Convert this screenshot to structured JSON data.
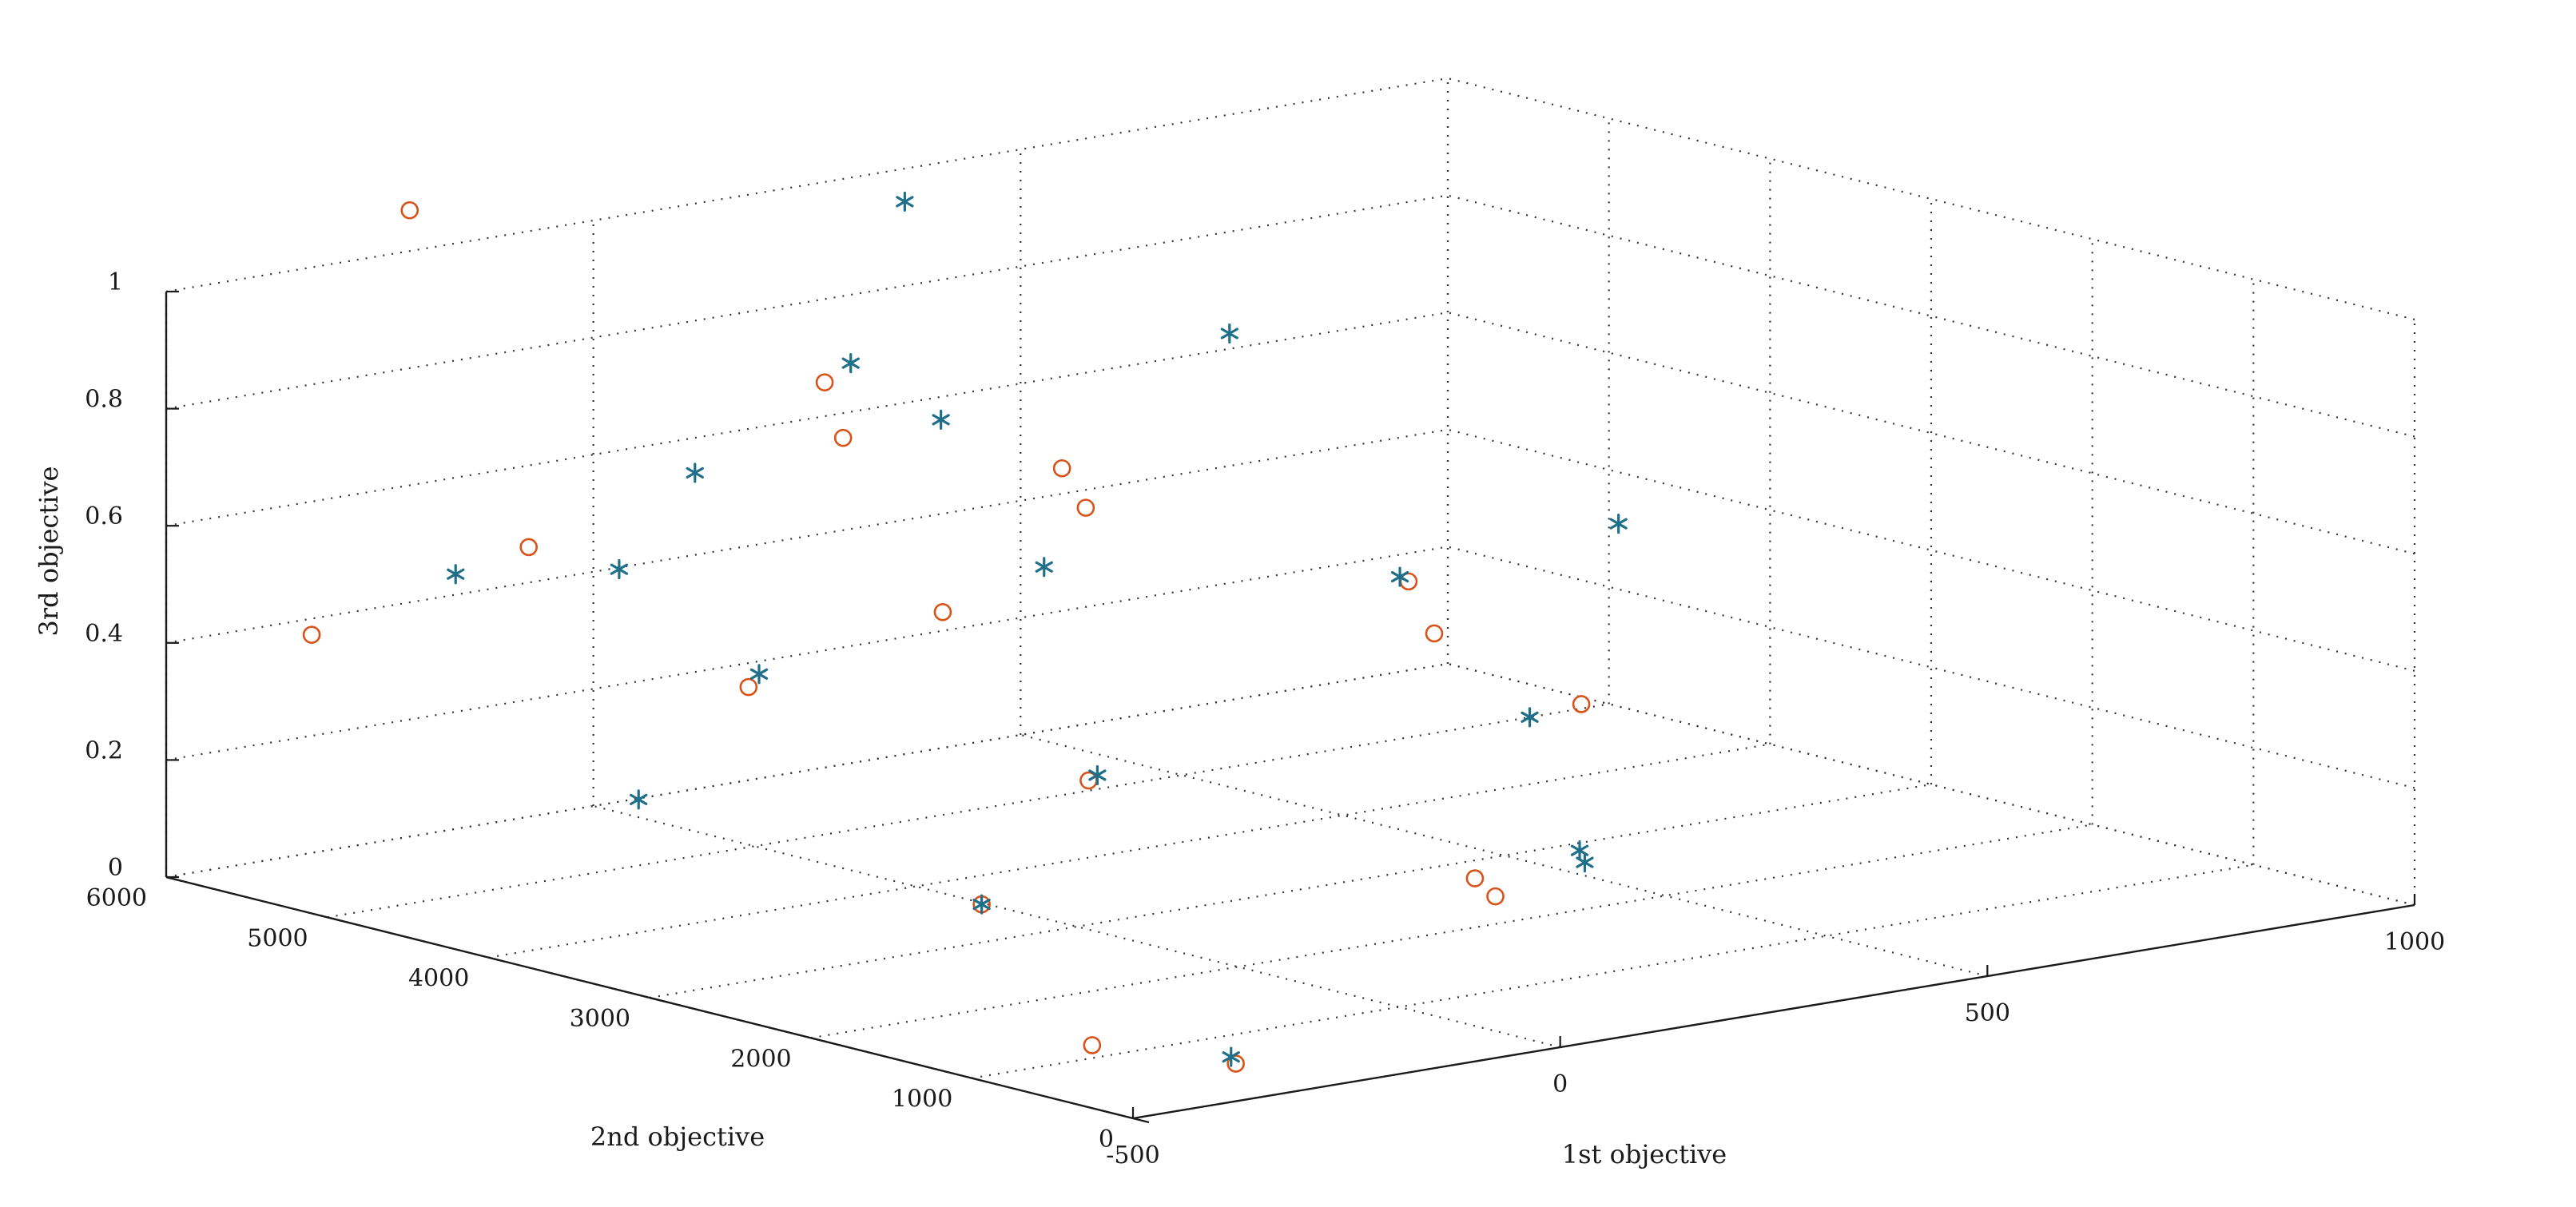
{
  "chart_data": {
    "type": "scatter",
    "title": "",
    "xlabel": "1st objective",
    "ylabel": "2nd objective",
    "zlabel": "3rd objective",
    "x_ticks": [
      "-500",
      "0",
      "500",
      "1000"
    ],
    "y_ticks": [
      "0",
      "1000",
      "2000",
      "3000",
      "4000",
      "5000",
      "6000"
    ],
    "z_ticks": [
      "0",
      "0.2",
      "0.4",
      "0.6",
      "0.8",
      "1"
    ],
    "xlim": [
      -500,
      1000
    ],
    "ylim": [
      0,
      6000
    ],
    "zlim": [
      0,
      1
    ],
    "grid": true,
    "series": [
      {
        "marker": "circle",
        "color": "#d95319",
        "points": [
          {
            "x": -331,
            "y": 5385,
            "z": 1.14
          },
          {
            "x": -79,
            "y": 4146,
            "z": 0.87
          },
          {
            "x": -74,
            "y": 4058,
            "z": 0.78
          },
          {
            "x": -289,
            "y": 4869,
            "z": 0.59
          },
          {
            "x": -408,
            "y": 5585,
            "z": 0.42
          },
          {
            "x": 93,
            "y": 3585,
            "z": 0.72
          },
          {
            "x": 114,
            "y": 3549,
            "z": 0.65
          },
          {
            "x": 0,
            "y": 3832,
            "z": 0.48
          },
          {
            "x": -133,
            "y": 4332,
            "z": 0.35
          },
          {
            "x": 364,
            "y": 2871,
            "z": 0.51
          },
          {
            "x": 384,
            "y": 2818,
            "z": 0.42
          },
          {
            "x": 486,
            "y": 2446,
            "z": 0.3
          },
          {
            "x": 90,
            "y": 3404,
            "z": 0.2
          },
          {
            "x": -4,
            "y": 3569,
            "z": 0.0
          },
          {
            "x": 366,
            "y": 2470,
            "z": 0.03
          },
          {
            "x": 379,
            "y": 2412,
            "z": 0.0
          },
          {
            "x": 56,
            "y": 3202,
            "z": -0.23
          },
          {
            "x": 138,
            "y": 2745,
            "z": -0.25
          }
        ]
      },
      {
        "marker": "asterisk",
        "color": "#1f6f8b",
        "points": [
          {
            "x": 8,
            "y": 4110,
            "z": 1.16
          },
          {
            "x": -56,
            "y": 4106,
            "z": 0.9
          },
          {
            "x": 13,
            "y": 3912,
            "z": 0.8
          },
          {
            "x": 244,
            "y": 3346,
            "z": 0.93
          },
          {
            "x": -161,
            "y": 4516,
            "z": 0.71
          },
          {
            "x": -222,
            "y": 4663,
            "z": 0.55
          },
          {
            "x": -334,
            "y": 5084,
            "z": 0.54
          },
          {
            "x": 83,
            "y": 3643,
            "z": 0.55
          },
          {
            "x": 542,
            "y": 2512,
            "z": 0.59
          },
          {
            "x": 338,
            "y": 2787,
            "z": 0.53
          },
          {
            "x": -122,
            "y": 4325,
            "z": 0.37
          },
          {
            "x": -230,
            "y": 4500,
            "z": 0.17
          },
          {
            "x": 111,
            "y": 3461,
            "z": 0.2
          },
          {
            "x": 446,
            "y": 2554,
            "z": 0.28
          },
          {
            "x": -4,
            "y": 3569,
            "z": 0.0
          },
          {
            "x": 485,
            "y": 2451,
            "z": 0.05
          },
          {
            "x": 488,
            "y": 2435,
            "z": 0.03
          },
          {
            "x": 137,
            "y": 2769,
            "z": -0.24
          }
        ]
      }
    ]
  }
}
